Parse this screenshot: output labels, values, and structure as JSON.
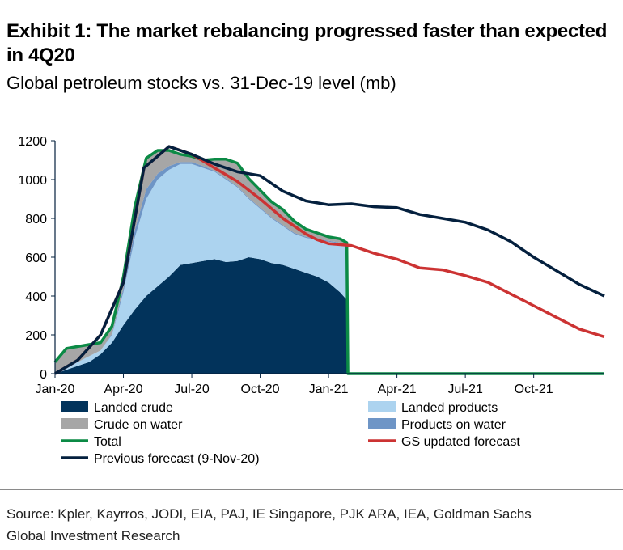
{
  "title": "Exhibit 1: The market rebalancing progressed faster than expected in 4Q20",
  "subtitle": "Global petroleum stocks vs. 31-Dec-19 level (mb)",
  "source": "Source: Kpler, Kayrros, JODI, EIA, PAJ, IE Singapore, PJK ARA, IEA, Goldman Sachs Global Investment Research",
  "chart_data": {
    "type": "area",
    "title": "Global petroleum stocks vs. 31-Dec-19 level (mb)",
    "xlabel": "",
    "ylabel": "mb",
    "x_unit": "months since Jan-20",
    "xlim": [
      0,
      24.1
    ],
    "ylim": [
      0,
      1200
    ],
    "yticks": [
      0,
      200,
      400,
      600,
      800,
      1000,
      1200
    ],
    "xticks": [
      {
        "x": 0,
        "label": "Jan-20"
      },
      {
        "x": 3,
        "label": "Apr-20"
      },
      {
        "x": 6,
        "label": "Jul-20"
      },
      {
        "x": 9,
        "label": "Oct-20"
      },
      {
        "x": 12,
        "label": "Jan-21"
      },
      {
        "x": 15,
        "label": "Apr-21"
      },
      {
        "x": 18,
        "label": "Jul-21"
      },
      {
        "x": 21,
        "label": "Oct-21"
      }
    ],
    "grid": false,
    "legend_placement": "bottom",
    "stack_x": [
      0,
      0.5,
      1,
      1.5,
      2,
      2.5,
      3,
      3.5,
      4,
      4.5,
      5,
      5.5,
      6,
      6.5,
      7,
      7.5,
      8,
      8.5,
      9,
      9.5,
      10,
      10.5,
      11,
      11.5,
      12,
      12.5,
      12.8
    ],
    "stacked_series": [
      {
        "name": "Landed crude",
        "color": "#02335b",
        "values": [
          0,
          20,
          40,
          60,
          100,
          160,
          250,
          330,
          400,
          450,
          500,
          560,
          570,
          580,
          590,
          575,
          580,
          600,
          590,
          570,
          560,
          540,
          520,
          500,
          470,
          420,
          380
        ]
      },
      {
        "name": "Landed products",
        "color": "#acd3ef",
        "values": [
          0,
          20,
          20,
          30,
          20,
          40,
          170,
          370,
          500,
          550,
          550,
          520,
          510,
          480,
          450,
          425,
          380,
          300,
          260,
          230,
          200,
          180,
          180,
          190,
          210,
          250,
          270
        ]
      },
      {
        "name": "Products on water",
        "color": "#6e95c6",
        "values": [
          0,
          0,
          0,
          0,
          0,
          5,
          20,
          40,
          50,
          30,
          20,
          10,
          10,
          10,
          5,
          5,
          5,
          5,
          5,
          5,
          5,
          5,
          5,
          5,
          5,
          5,
          5
        ]
      },
      {
        "name": "Crude on water",
        "color": "#a6a6a6",
        "values": [
          60,
          90,
          80,
          60,
          40,
          40,
          60,
          120,
          160,
          120,
          80,
          40,
          30,
          30,
          60,
          100,
          120,
          100,
          90,
          80,
          80,
          60,
          40,
          30,
          20,
          20,
          20
        ]
      }
    ],
    "total": {
      "name": "Total",
      "color": "#0b8a45",
      "tail_x": [
        12.85,
        24.1
      ],
      "tail_values": [
        0,
        0
      ]
    },
    "lines": [
      {
        "name": "GS updated forecast",
        "color": "#cc3333",
        "x": [
          0,
          1,
          2,
          3,
          3.9,
          5,
          6,
          7,
          8,
          9,
          10,
          11,
          11.5,
          12,
          13,
          14,
          15,
          16,
          17,
          18,
          19,
          20,
          21,
          22,
          23,
          24.1
        ],
        "values": [
          0,
          70,
          200,
          470,
          1060,
          1170,
          1130,
          1060,
          990,
          900,
          800,
          720,
          690,
          670,
          660,
          620,
          590,
          545,
          535,
          505,
          470,
          410,
          350,
          290,
          230,
          190
        ]
      },
      {
        "name": "Previous forecast (9-Nov-20)",
        "color": "#04203e",
        "x": [
          0,
          1,
          2,
          3,
          3.9,
          5,
          6,
          7,
          8,
          9,
          10,
          11,
          12,
          13,
          14,
          15,
          16,
          17,
          18,
          19,
          20,
          21,
          22,
          23,
          24.1
        ],
        "values": [
          0,
          70,
          200,
          470,
          1060,
          1170,
          1130,
          1080,
          1040,
          1020,
          940,
          890,
          870,
          875,
          860,
          855,
          820,
          800,
          780,
          740,
          680,
          600,
          530,
          460,
          400
        ]
      }
    ],
    "legend": [
      {
        "name": "Landed crude",
        "color": "#02335b",
        "kind": "box"
      },
      {
        "name": "Landed products",
        "color": "#acd3ef",
        "kind": "box"
      },
      {
        "name": "Crude on water",
        "color": "#a6a6a6",
        "kind": "box"
      },
      {
        "name": "Products on water",
        "color": "#6e95c6",
        "kind": "box"
      },
      {
        "name": "Total",
        "color": "#0b8a45",
        "kind": "line"
      },
      {
        "name": "GS updated forecast",
        "color": "#cc3333",
        "kind": "line"
      },
      {
        "name": "Previous forecast (9-Nov-20)",
        "color": "#04203e",
        "kind": "line"
      }
    ]
  }
}
